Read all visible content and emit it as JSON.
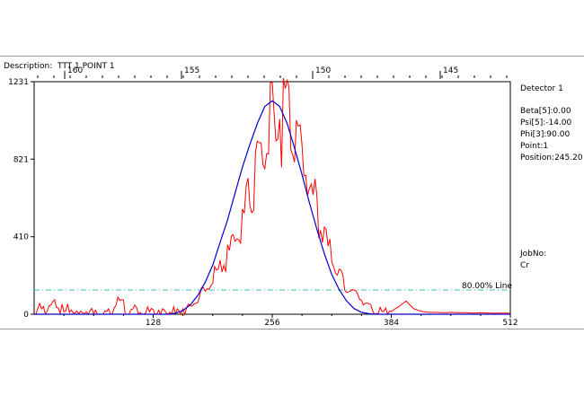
{
  "description_label": "Description:",
  "description_value": "TTT 1 POINT 1",
  "side_panel": {
    "detector": "Detector  1",
    "beta": "Beta[5]:0.00",
    "psi": "Psi[5]:-14.00",
    "phi": "Phi[3]:90.00",
    "point": "Point:1",
    "position": "Position:245.20",
    "jobno_label": "JobNo:",
    "jobno_value": "Cr"
  },
  "colors": {
    "raw": "#ff0000",
    "fit": "#0000cc",
    "threshold": "#3fb8b8",
    "axis": "#000000"
  },
  "chart_data": {
    "type": "line",
    "xlim": [
      0,
      512
    ],
    "ylim": [
      0,
      1231
    ],
    "x_ticks": [
      128,
      256,
      384,
      512
    ],
    "y_ticks": [
      0,
      410,
      821,
      1231
    ],
    "top_axis": {
      "ticks": [
        160,
        155,
        150,
        145
      ],
      "positions": [
        34,
        164,
        310,
        452
      ]
    },
    "threshold": {
      "value": 0.8,
      "y": 257,
      "label": "80.00% Line"
    },
    "series": [
      {
        "style": "noisy",
        "x": [
          0,
          8,
          16,
          24,
          32,
          40,
          48,
          56,
          64,
          72,
          80,
          88,
          96,
          104,
          112,
          120,
          128,
          136,
          144,
          152,
          160,
          168,
          176,
          184,
          192,
          200,
          208,
          216,
          224,
          232,
          240,
          248,
          256,
          264,
          272,
          280,
          288,
          296,
          304,
          312,
          320,
          328,
          336,
          344,
          352,
          360,
          368,
          376,
          384,
          392,
          400,
          408,
          416,
          424,
          432,
          440,
          448,
          456,
          464,
          472,
          480,
          488,
          496,
          504,
          512
        ],
        "y": [
          0,
          70,
          30,
          85,
          20,
          55,
          15,
          50,
          10,
          40,
          20,
          85,
          60,
          25,
          55,
          15,
          45,
          10,
          40,
          20,
          50,
          45,
          110,
          140,
          210,
          280,
          330,
          440,
          560,
          700,
          880,
          1000,
          1130,
          1200,
          1231,
          1100,
          960,
          760,
          620,
          470,
          330,
          230,
          160,
          130,
          100,
          60,
          25,
          20,
          15,
          40,
          70,
          30,
          15,
          10,
          10,
          8,
          10,
          8,
          8,
          6,
          8,
          6,
          5,
          6,
          5
        ]
      },
      {
        "style": "smooth",
        "x": [
          0,
          8,
          16,
          24,
          32,
          40,
          48,
          56,
          64,
          72,
          80,
          88,
          96,
          104,
          112,
          120,
          128,
          136,
          144,
          152,
          160,
          168,
          176,
          184,
          192,
          200,
          208,
          216,
          224,
          232,
          240,
          248,
          256,
          264,
          272,
          280,
          288,
          296,
          304,
          312,
          320,
          328,
          336,
          344,
          352,
          360,
          368,
          376,
          384,
          392,
          400,
          408,
          416,
          424,
          432,
          440,
          448,
          456,
          464,
          472,
          480,
          488,
          496,
          504,
          512
        ],
        "y": [
          0,
          0,
          0,
          0,
          0,
          0,
          0,
          0,
          0,
          0,
          0,
          0,
          0,
          0,
          0,
          0,
          0,
          0,
          0,
          5,
          20,
          50,
          100,
          170,
          260,
          380,
          500,
          640,
          780,
          900,
          1010,
          1100,
          1130,
          1100,
          1010,
          880,
          740,
          590,
          450,
          320,
          210,
          130,
          70,
          30,
          10,
          3,
          0,
          0,
          0,
          0,
          0,
          0,
          0,
          0,
          0,
          0,
          0,
          0,
          0,
          0,
          0,
          0,
          0,
          0,
          0
        ]
      }
    ]
  }
}
